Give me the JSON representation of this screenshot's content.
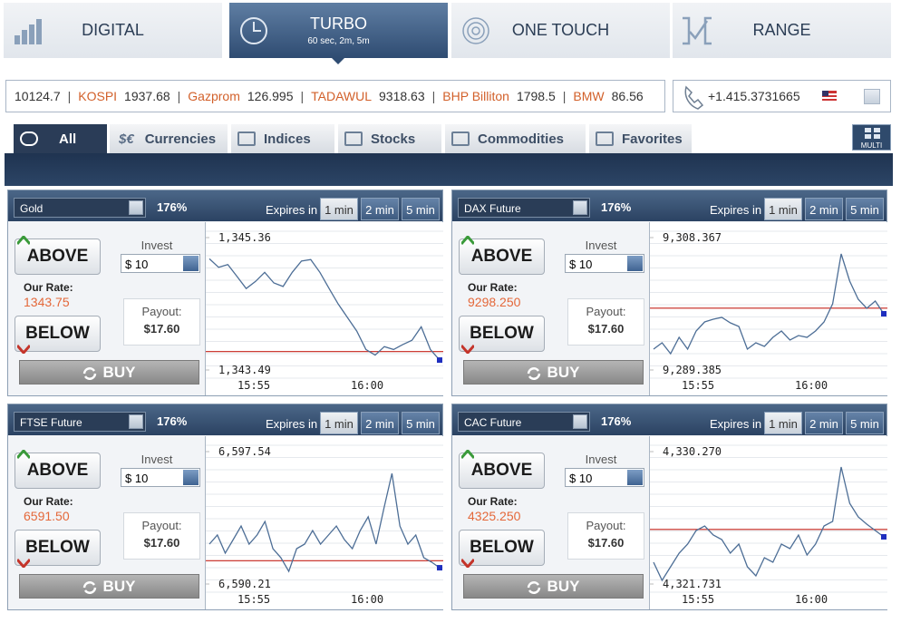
{
  "product_tabs": [
    {
      "label": "DIGITAL"
    },
    {
      "label": "TURBO",
      "subtitle": "60 sec, 2m, 5m",
      "active": true
    },
    {
      "label": "ONE TOUCH"
    },
    {
      "label": "RANGE"
    }
  ],
  "ticker": [
    {
      "value": "10124.7"
    },
    {
      "name": "KOSPI",
      "value": "1937.68"
    },
    {
      "name": "Gazprom",
      "value": "126.995"
    },
    {
      "name": "TADAWUL",
      "value": "9318.63"
    },
    {
      "name": "BHP Billiton",
      "value": "1798.5"
    },
    {
      "name": "BMW",
      "value": "86.56"
    }
  ],
  "phone": "+1.415.3731665",
  "asset_tabs": [
    {
      "label": "All",
      "active": true
    },
    {
      "label": "Currencies",
      "icon": "$€"
    },
    {
      "label": "Indices"
    },
    {
      "label": "Stocks"
    },
    {
      "label": "Commodities"
    },
    {
      "label": "Favorites"
    }
  ],
  "multi": "MULTI",
  "panels": [
    {
      "asset": "Gold",
      "profit": "176%",
      "expires_label": "Expires in",
      "durations": [
        "1 min",
        "2 min",
        "5 min"
      ],
      "active_duration": 0,
      "above": "ABOVE",
      "below": "BELOW",
      "invest_label": "Invest",
      "invest": "$ 10",
      "rate_label": "Our Rate:",
      "rate": {
        "value": 1343.75,
        "label": "1343.75"
      },
      "payout_label": "Payout:",
      "payout": "$17.60",
      "buy": "BUY",
      "chart": {
        "type": "line",
        "yticks": [
          {
            "value": 1345.36,
            "label": "1,345.36"
          },
          {
            "value": 1343.49,
            "label": "1,343.49"
          }
        ],
        "xticks": [
          "15:55",
          "16:00"
        ],
        "values": [
          1345.06,
          1344.94,
          1344.98,
          1344.81,
          1344.64,
          1344.74,
          1344.87,
          1344.72,
          1344.67,
          1344.87,
          1345.03,
          1345.05,
          1344.87,
          1344.64,
          1344.42,
          1344.23,
          1344.04,
          1343.78,
          1343.7,
          1343.82,
          1343.78,
          1343.85,
          1343.91,
          1344.1,
          1343.78,
          1343.63
        ]
      }
    },
    {
      "asset": "DAX Future",
      "profit": "176%",
      "expires_label": "Expires in",
      "durations": [
        "1 min",
        "2 min",
        "5 min"
      ],
      "active_duration": 0,
      "above": "ABOVE",
      "below": "BELOW",
      "invest_label": "Invest",
      "invest": "$ 10",
      "rate_label": "Our Rate:",
      "rate": {
        "value": 9298.25,
        "label": "9298.250"
      },
      "payout_label": "Payout:",
      "payout": "$17.60",
      "buy": "BUY",
      "chart": {
        "type": "line",
        "yticks": [
          {
            "value": 9308.367,
            "label": "9,308.367"
          },
          {
            "value": 9289.385,
            "label": "9,289.385"
          }
        ],
        "xticks": [
          "15:55",
          "16:00"
        ],
        "values": [
          9292.375,
          9293.285,
          9291.725,
          9294.065,
          9292.375,
          9294.975,
          9296.275,
          9296.665,
          9296.925,
          9296.145,
          9295.625,
          9292.375,
          9293.285,
          9292.765,
          9294.065,
          9294.975,
          9293.675,
          9294.325,
          9294.065,
          9294.975,
          9296.275,
          9298.875,
          9306.025,
          9302.125,
          9299.525,
          9298.225,
          9299.265,
          9297.445
        ]
      }
    },
    {
      "asset": "FTSE Future",
      "profit": "176%",
      "expires_label": "Expires in",
      "durations": [
        "1 min",
        "2 min",
        "5 min"
      ],
      "active_duration": 0,
      "above": "ABOVE",
      "below": "BELOW",
      "invest_label": "Invest",
      "invest": "$ 10",
      "rate_label": "Our Rate:",
      "rate": {
        "value": 6591.5,
        "label": "6591.50"
      },
      "payout_label": "Payout:",
      "payout": "$17.60",
      "buy": "BUY",
      "chart": {
        "type": "line",
        "yticks": [
          {
            "value": 6597.54,
            "label": "6,597.54"
          },
          {
            "value": 6590.21,
            "label": "6,590.21"
          }
        ],
        "xticks": [
          "15:55",
          "16:00"
        ],
        "values": [
          6592.42,
          6592.92,
          6591.92,
          6592.67,
          6593.42,
          6592.42,
          6592.92,
          6593.67,
          6592.17,
          6591.67,
          6590.91,
          6592.17,
          6592.42,
          6593.17,
          6592.42,
          6592.92,
          6593.42,
          6592.67,
          6592.17,
          6593.17,
          6593.93,
          6592.42,
          6594.43,
          6596.33,
          6593.42,
          6592.42,
          6592.92,
          6591.67,
          6591.42,
          6591.11
        ]
      }
    },
    {
      "asset": "CAC Future",
      "profit": "176%",
      "expires_label": "Expires in",
      "durations": [
        "1 min",
        "2 min",
        "5 min"
      ],
      "active_duration": 0,
      "above": "ABOVE",
      "below": "BELOW",
      "invest_label": "Invest",
      "invest": "$ 10",
      "rate_label": "Our Rate:",
      "rate": {
        "value": 4325.25,
        "label": "4325.250"
      },
      "payout_label": "Payout:",
      "payout": "$17.60",
      "buy": "BUY",
      "chart": {
        "type": "line",
        "yticks": [
          {
            "value": 4330.27,
            "label": "4,330.270"
          },
          {
            "value": 4321.731,
            "label": "4,321.731"
          }
        ],
        "xticks": [
          "15:55",
          "16:00"
        ],
        "values": [
          4323.135,
          4321.965,
          4322.843,
          4323.72,
          4324.305,
          4325.183,
          4325.475,
          4324.89,
          4324.598,
          4323.72,
          4324.305,
          4322.843,
          4322.258,
          4323.428,
          4323.135,
          4324.305,
          4324.013,
          4324.89,
          4323.603,
          4324.305,
          4325.475,
          4325.768,
          4329.278,
          4326.938,
          4326.06,
          4325.592,
          4325.183,
          4324.773
        ]
      }
    }
  ]
}
